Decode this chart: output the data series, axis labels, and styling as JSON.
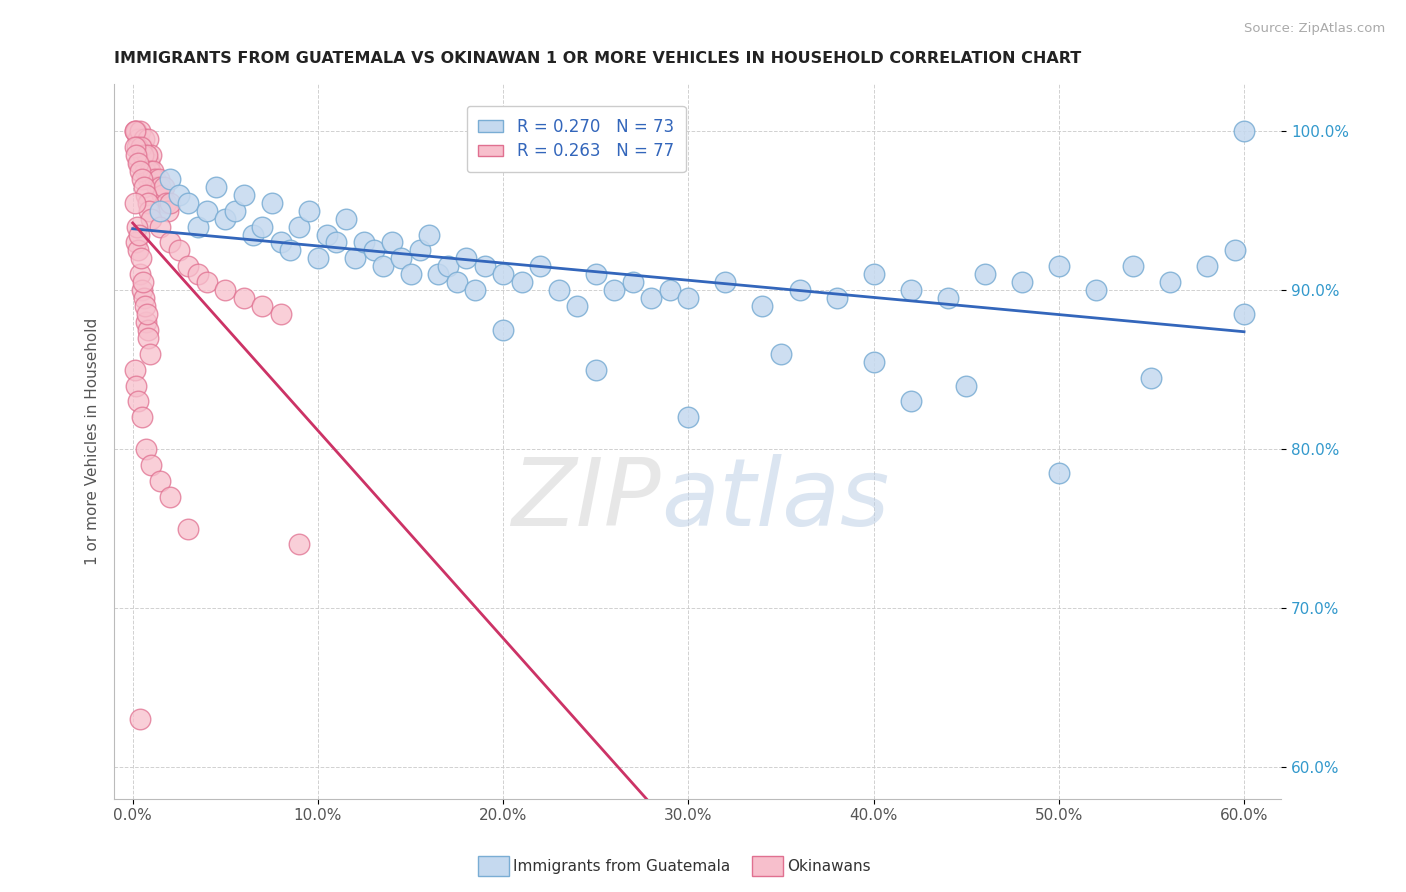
{
  "title": "IMMIGRANTS FROM GUATEMALA VS OKINAWAN 1 OR MORE VEHICLES IN HOUSEHOLD CORRELATION CHART",
  "source": "Source: ZipAtlas.com",
  "ylabel": "1 or more Vehicles in Household",
  "x_tick_labels": [
    "0.0%",
    "10.0%",
    "20.0%",
    "30.0%",
    "40.0%",
    "50.0%",
    "60.0%"
  ],
  "x_tick_values": [
    0.0,
    10.0,
    20.0,
    30.0,
    40.0,
    50.0,
    60.0
  ],
  "y_tick_labels": [
    "60.0%",
    "70.0%",
    "80.0%",
    "90.0%",
    "100.0%"
  ],
  "y_tick_values": [
    60.0,
    70.0,
    80.0,
    90.0,
    100.0
  ],
  "xlim": [
    -1.0,
    62.0
  ],
  "ylim": [
    58.0,
    103.0
  ],
  "legend_label_blue": "Immigrants from Guatemala",
  "legend_label_pink": "Okinawans",
  "legend_R_blue": "R = 0.270",
  "legend_N_blue": "N = 73",
  "legend_R_pink": "R = 0.263",
  "legend_N_pink": "N = 77",
  "blue_color": "#c5d9ef",
  "blue_edge": "#7aadd4",
  "pink_color": "#f7bfcc",
  "pink_edge": "#e07090",
  "trend_blue": "#3366bb",
  "trend_pink": "#cc3366",
  "blue_scatter_x": [
    1.5,
    2.0,
    2.5,
    3.0,
    3.5,
    4.0,
    4.5,
    5.0,
    5.5,
    6.0,
    6.5,
    7.0,
    7.5,
    8.0,
    8.5,
    9.0,
    9.5,
    10.0,
    10.5,
    11.0,
    11.5,
    12.0,
    12.5,
    13.0,
    13.5,
    14.0,
    14.5,
    15.0,
    15.5,
    16.0,
    16.5,
    17.0,
    17.5,
    18.0,
    18.5,
    19.0,
    20.0,
    21.0,
    22.0,
    23.0,
    24.0,
    25.0,
    26.0,
    27.0,
    28.0,
    29.0,
    30.0,
    32.0,
    34.0,
    36.0,
    38.0,
    40.0,
    42.0,
    44.0,
    46.0,
    48.0,
    50.0,
    52.0,
    54.0,
    56.0,
    58.0,
    59.5,
    60.0,
    20.0,
    25.0,
    30.0,
    35.0,
    40.0,
    45.0,
    50.0,
    55.0,
    60.0,
    42.0
  ],
  "blue_scatter_y": [
    95.0,
    97.0,
    96.0,
    95.5,
    94.0,
    95.0,
    96.5,
    94.5,
    95.0,
    96.0,
    93.5,
    94.0,
    95.5,
    93.0,
    92.5,
    94.0,
    95.0,
    92.0,
    93.5,
    93.0,
    94.5,
    92.0,
    93.0,
    92.5,
    91.5,
    93.0,
    92.0,
    91.0,
    92.5,
    93.5,
    91.0,
    91.5,
    90.5,
    92.0,
    90.0,
    91.5,
    91.0,
    90.5,
    91.5,
    90.0,
    89.0,
    91.0,
    90.0,
    90.5,
    89.5,
    90.0,
    89.5,
    90.5,
    89.0,
    90.0,
    89.5,
    91.0,
    90.0,
    89.5,
    91.0,
    90.5,
    91.5,
    90.0,
    91.5,
    90.5,
    91.5,
    92.5,
    100.0,
    87.5,
    85.0,
    82.0,
    86.0,
    85.5,
    84.0,
    78.5,
    84.5,
    88.5,
    83.0
  ],
  "pink_scatter_x": [
    0.1,
    0.2,
    0.3,
    0.4,
    0.5,
    0.6,
    0.7,
    0.8,
    0.9,
    1.0,
    0.15,
    0.25,
    0.35,
    0.45,
    0.55,
    0.65,
    0.75,
    0.85,
    0.95,
    1.05,
    1.1,
    1.2,
    1.3,
    1.4,
    1.5,
    1.6,
    1.7,
    1.8,
    1.9,
    2.0,
    0.1,
    0.2,
    0.3,
    0.4,
    0.5,
    0.6,
    0.7,
    0.8,
    0.9,
    1.0,
    1.5,
    2.0,
    2.5,
    3.0,
    3.5,
    4.0,
    5.0,
    6.0,
    7.0,
    8.0,
    0.2,
    0.3,
    0.4,
    0.5,
    0.6,
    0.7,
    0.8,
    0.15,
    0.25,
    0.35,
    0.45,
    0.55,
    0.65,
    0.75,
    0.85,
    0.95,
    0.1,
    0.2,
    0.3,
    0.5,
    0.7,
    1.0,
    1.5,
    2.0,
    3.0,
    9.0,
    0.4
  ],
  "pink_scatter_y": [
    100.0,
    100.0,
    99.5,
    100.0,
    99.0,
    99.5,
    98.5,
    99.5,
    98.0,
    98.5,
    100.0,
    99.0,
    98.0,
    99.0,
    98.5,
    97.5,
    98.5,
    97.0,
    97.5,
    97.0,
    97.5,
    97.0,
    96.5,
    97.0,
    96.5,
    96.0,
    96.5,
    95.5,
    95.0,
    95.5,
    99.0,
    98.5,
    98.0,
    97.5,
    97.0,
    96.5,
    96.0,
    95.5,
    95.0,
    94.5,
    94.0,
    93.0,
    92.5,
    91.5,
    91.0,
    90.5,
    90.0,
    89.5,
    89.0,
    88.5,
    93.0,
    92.5,
    91.0,
    90.0,
    89.5,
    88.0,
    87.5,
    95.5,
    94.0,
    93.5,
    92.0,
    90.5,
    89.0,
    88.5,
    87.0,
    86.0,
    85.0,
    84.0,
    83.0,
    82.0,
    80.0,
    79.0,
    78.0,
    77.0,
    75.0,
    74.0,
    63.0
  ],
  "watermark_zip": "ZIP",
  "watermark_atlas": "atlas",
  "background": "#ffffff"
}
